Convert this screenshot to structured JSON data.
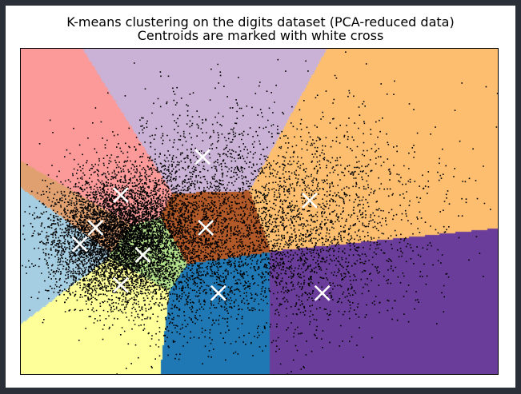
{
  "window": {
    "background": "#2b2f38"
  },
  "chart_data": {
    "type": "scatter",
    "title": "K-means clustering on the digits dataset (PCA-reduced data)",
    "subtitle": "Centroids are marked with white cross",
    "xlabel": "",
    "ylabel": "",
    "xlim": [
      -36,
      40
    ],
    "ylim": [
      -30,
      30
    ],
    "grid": false,
    "axis_ticks": false,
    "legend": "none",
    "background_regions": "Voronoi decision regions of the 10 centroids, colored with the Paired colormap",
    "clusters": [
      {
        "centroid": [
          -26.5,
          -6.0
        ],
        "region_color": "#a6cee3"
      },
      {
        "centroid": [
          -20.0,
          -13.5
        ],
        "region_color": "#ffff99"
      },
      {
        "centroid": [
          -4.5,
          -15.0
        ],
        "region_color": "#1f78b4"
      },
      {
        "centroid": [
          -16.5,
          -8.0
        ],
        "region_color": "#b2df8a"
      },
      {
        "centroid": [
          -24.0,
          -3.0
        ],
        "region_color": "#e0a070"
      },
      {
        "centroid": [
          -20.0,
          3.0
        ],
        "region_color": "#fb9a99"
      },
      {
        "centroid": [
          -7.0,
          10.0
        ],
        "region_color": "#cab2d6"
      },
      {
        "centroid": [
          -6.5,
          -3.0
        ],
        "region_color": "#b15928"
      },
      {
        "centroid": [
          10.0,
          2.0
        ],
        "region_color": "#fdbf6f"
      },
      {
        "centroid": [
          12.0,
          -15.0
        ],
        "region_color": "#6a3d9a"
      }
    ],
    "points": {
      "color": "#000000",
      "count": 20000,
      "description": "PCA-reduced digit samples, densest around x=-20, y=-5"
    },
    "centroid_marker": {
      "shape": "x",
      "color": "#ffffff"
    }
  }
}
